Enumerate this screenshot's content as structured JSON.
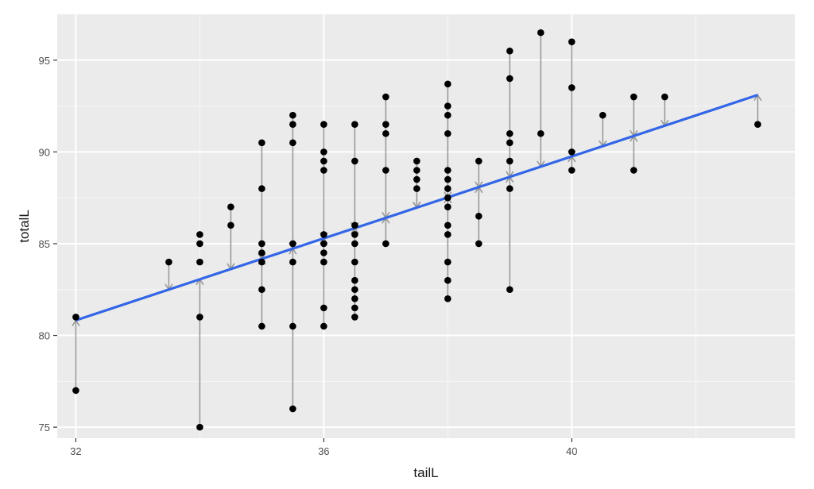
{
  "chart_data": {
    "type": "scatter",
    "xlabel": "tailL",
    "ylabel": "totalL",
    "xlim": [
      31.7,
      43.6
    ],
    "ylim": [
      74.4,
      97.5
    ],
    "x_ticks": [
      32,
      36,
      40
    ],
    "x_tick_labels": [
      "32",
      "36",
      "40"
    ],
    "x_minor_ticks": [
      34,
      38,
      42
    ],
    "y_ticks": [
      75,
      80,
      85,
      90,
      95
    ],
    "y_tick_labels": [
      "75",
      "80",
      "85",
      "90",
      "95"
    ],
    "y_minor_ticks": [
      77.5,
      82.5,
      87.5,
      92.5
    ],
    "grid": true,
    "regression_line": {
      "intercept": 45.11,
      "slope": 1.1161,
      "color": "#3366e6"
    },
    "residual_color": "#999999",
    "point_color": "#000000",
    "panel_background": "#ebebeb",
    "points": [
      [
        32,
        81
      ],
      [
        32,
        77
      ],
      [
        33.5,
        84
      ],
      [
        34,
        85.5
      ],
      [
        34,
        85
      ],
      [
        34,
        84
      ],
      [
        34,
        81
      ],
      [
        34,
        75
      ],
      [
        34.5,
        87
      ],
      [
        34.5,
        86
      ],
      [
        35,
        90.5
      ],
      [
        35,
        88
      ],
      [
        35,
        85
      ],
      [
        35,
        84.5
      ],
      [
        35,
        84
      ],
      [
        35,
        82.5
      ],
      [
        35,
        80.5
      ],
      [
        35.5,
        92
      ],
      [
        35.5,
        91.5
      ],
      [
        35.5,
        90.5
      ],
      [
        35.5,
        85
      ],
      [
        35.5,
        84
      ],
      [
        35.5,
        80.5
      ],
      [
        35.5,
        76
      ],
      [
        36,
        91.5
      ],
      [
        36,
        90
      ],
      [
        36,
        89.5
      ],
      [
        36,
        89
      ],
      [
        36,
        85.5
      ],
      [
        36,
        85
      ],
      [
        36,
        84.5
      ],
      [
        36,
        84
      ],
      [
        36,
        81.5
      ],
      [
        36,
        80.5
      ],
      [
        36.5,
        91.5
      ],
      [
        36.5,
        89.5
      ],
      [
        36.5,
        86
      ],
      [
        36.5,
        85.5
      ],
      [
        36.5,
        85
      ],
      [
        36.5,
        84
      ],
      [
        36.5,
        83
      ],
      [
        36.5,
        82.5
      ],
      [
        36.5,
        82
      ],
      [
        36.5,
        81.5
      ],
      [
        36.5,
        81
      ],
      [
        37,
        93
      ],
      [
        37,
        91.5
      ],
      [
        37,
        91
      ],
      [
        37,
        89
      ],
      [
        37,
        85
      ],
      [
        37.5,
        89.5
      ],
      [
        37.5,
        89
      ],
      [
        37.5,
        88.5
      ],
      [
        37.5,
        88
      ],
      [
        38,
        93.7
      ],
      [
        38,
        92.5
      ],
      [
        38,
        92
      ],
      [
        38,
        91
      ],
      [
        38,
        89
      ],
      [
        38,
        88.5
      ],
      [
        38,
        88
      ],
      [
        38,
        87.5
      ],
      [
        38,
        87
      ],
      [
        38,
        86
      ],
      [
        38,
        85.5
      ],
      [
        38,
        84
      ],
      [
        38,
        83
      ],
      [
        38,
        82
      ],
      [
        38.5,
        89.5
      ],
      [
        38.5,
        86.5
      ],
      [
        38.5,
        85
      ],
      [
        39,
        95.5
      ],
      [
        39,
        94
      ],
      [
        39,
        91
      ],
      [
        39,
        90.5
      ],
      [
        39,
        89.5
      ],
      [
        39,
        88
      ],
      [
        39,
        82.5
      ],
      [
        39.5,
        96.5
      ],
      [
        39.5,
        91
      ],
      [
        40,
        96
      ],
      [
        40,
        93.5
      ],
      [
        40,
        90
      ],
      [
        40,
        89
      ],
      [
        40.5,
        92
      ],
      [
        41,
        93
      ],
      [
        41,
        89
      ],
      [
        41.5,
        93
      ],
      [
        43,
        91.5
      ]
    ],
    "residual_segments": [
      {
        "x": 32,
        "y": 77,
        "y_end": 80.82
      },
      {
        "x": 33.5,
        "y": 84,
        "y_end": 82.5
      },
      {
        "x": 34,
        "y": 75,
        "y_end": 83.06
      },
      {
        "x": 34.5,
        "y": 87,
        "y_end": 83.62
      },
      {
        "x": 35,
        "y": 90.5,
        "y_end": 84.17
      },
      {
        "x": 35,
        "y": 80.5,
        "y_end": 84.17
      },
      {
        "x": 35.5,
        "y": 92,
        "y_end": 84.73
      },
      {
        "x": 35.5,
        "y": 76,
        "y_end": 84.73
      },
      {
        "x": 36,
        "y": 91.5,
        "y_end": 85.29
      },
      {
        "x": 36,
        "y": 80.5,
        "y_end": 85.29
      },
      {
        "x": 36.5,
        "y": 91.5,
        "y_end": 85.85
      },
      {
        "x": 36.5,
        "y": 81,
        "y_end": 85.85
      },
      {
        "x": 37,
        "y": 93,
        "y_end": 86.41
      },
      {
        "x": 37,
        "y": 85,
        "y_end": 86.41
      },
      {
        "x": 37.5,
        "y": 89.5,
        "y_end": 86.97
      },
      {
        "x": 37.5,
        "y": 88,
        "y_end": 86.97
      },
      {
        "x": 38,
        "y": 93.7,
        "y_end": 87.52
      },
      {
        "x": 38,
        "y": 82,
        "y_end": 87.52
      },
      {
        "x": 38.5,
        "y": 89.5,
        "y_end": 88.08
      },
      {
        "x": 38.5,
        "y": 85,
        "y_end": 88.08
      },
      {
        "x": 39,
        "y": 95.5,
        "y_end": 88.64
      },
      {
        "x": 39,
        "y": 82.5,
        "y_end": 88.64
      },
      {
        "x": 39.5,
        "y": 96.5,
        "y_end": 89.2
      },
      {
        "x": 40,
        "y": 96,
        "y_end": 89.76
      },
      {
        "x": 40,
        "y": 89,
        "y_end": 89.76
      },
      {
        "x": 40.5,
        "y": 92,
        "y_end": 90.31
      },
      {
        "x": 41,
        "y": 93,
        "y_end": 90.87
      },
      {
        "x": 41,
        "y": 89,
        "y_end": 90.87
      },
      {
        "x": 41.5,
        "y": 93,
        "y_end": 91.43
      },
      {
        "x": 43,
        "y": 91.5,
        "y_end": 93.1
      }
    ]
  }
}
